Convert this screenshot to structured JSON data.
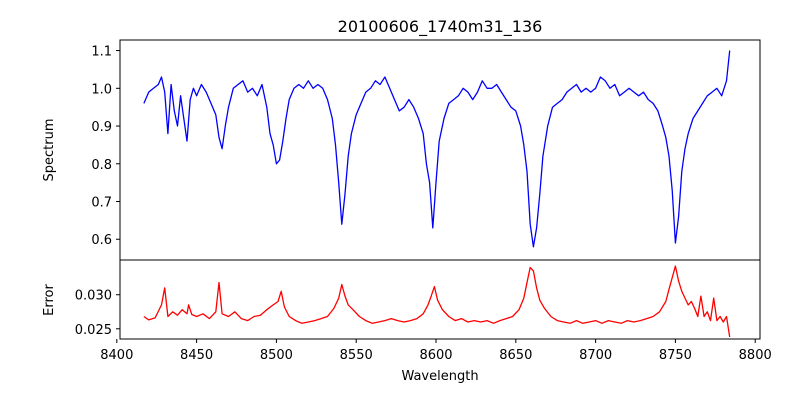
{
  "chart_data": [
    {
      "type": "line",
      "panel": "top",
      "title": "20100606_1740m31_136",
      "xlabel": "",
      "ylabel": "Spectrum",
      "xlim": [
        8402,
        8803
      ],
      "ylim": [
        0.545,
        1.128
      ],
      "xticks": [
        8400,
        8450,
        8500,
        8550,
        8600,
        8650,
        8700,
        8750,
        8800
      ],
      "yticks": [
        0.6,
        0.7,
        0.8,
        0.9,
        1.0,
        1.1
      ],
      "ytick_labels": [
        "0.6",
        "0.7",
        "0.8",
        "0.9",
        "1.0",
        "1.1"
      ],
      "series": [
        {
          "name": "spectrum",
          "color": "#0000ff",
          "x": [
            8417,
            8420,
            8423,
            8426,
            8428,
            8430,
            8432,
            8434,
            8436,
            8438,
            8440,
            8442,
            8444,
            8446,
            8448,
            8450,
            8453,
            8456,
            8459,
            8462,
            8464,
            8466,
            8468,
            8470,
            8473,
            8476,
            8479,
            8482,
            8485,
            8488,
            8491,
            8494,
            8496,
            8498,
            8500,
            8502,
            8504,
            8506,
            8508,
            8511,
            8514,
            8517,
            8520,
            8523,
            8526,
            8529,
            8532,
            8535,
            8537,
            8539,
            8541,
            8543,
            8545,
            8547,
            8550,
            8553,
            8556,
            8559,
            8562,
            8565,
            8568,
            8571,
            8574,
            8577,
            8580,
            8583,
            8586,
            8589,
            8592,
            8594,
            8596,
            8598,
            8600,
            8602,
            8605,
            8608,
            8611,
            8614,
            8617,
            8620,
            8623,
            8626,
            8629,
            8632,
            8635,
            8638,
            8641,
            8644,
            8647,
            8650,
            8653,
            8655,
            8657,
            8659,
            8661,
            8663,
            8665,
            8667,
            8670,
            8673,
            8676,
            8679,
            8682,
            8685,
            8688,
            8691,
            8694,
            8697,
            8700,
            8703,
            8706,
            8709,
            8712,
            8715,
            8718,
            8721,
            8724,
            8727,
            8730,
            8733,
            8736,
            8739,
            8742,
            8744,
            8746,
            8748,
            8750,
            8752,
            8754,
            8756,
            8758,
            8761,
            8764,
            8767,
            8770,
            8773,
            8776,
            8779,
            8782,
            8784
          ],
          "y": [
            0.96,
            0.99,
            1.0,
            1.01,
            1.03,
            0.99,
            0.88,
            1.01,
            0.94,
            0.9,
            0.98,
            0.92,
            0.86,
            0.97,
            1.0,
            0.98,
            1.01,
            0.99,
            0.96,
            0.93,
            0.87,
            0.84,
            0.9,
            0.95,
            1.0,
            1.01,
            1.02,
            0.99,
            1.0,
            0.98,
            1.01,
            0.95,
            0.88,
            0.85,
            0.8,
            0.81,
            0.86,
            0.92,
            0.97,
            1.0,
            1.01,
            1.0,
            1.02,
            1.0,
            1.01,
            1.0,
            0.97,
            0.92,
            0.85,
            0.75,
            0.64,
            0.72,
            0.82,
            0.88,
            0.93,
            0.96,
            0.99,
            1.0,
            1.02,
            1.01,
            1.03,
            1.0,
            0.97,
            0.94,
            0.95,
            0.97,
            0.95,
            0.92,
            0.88,
            0.8,
            0.75,
            0.63,
            0.75,
            0.86,
            0.92,
            0.96,
            0.97,
            0.98,
            1.0,
            0.99,
            0.97,
            0.99,
            1.02,
            1.0,
            1.0,
            1.01,
            0.99,
            0.97,
            0.95,
            0.94,
            0.9,
            0.85,
            0.78,
            0.64,
            0.58,
            0.63,
            0.72,
            0.82,
            0.9,
            0.95,
            0.96,
            0.97,
            0.99,
            1.0,
            1.01,
            0.99,
            1.0,
            0.99,
            1.0,
            1.03,
            1.02,
            1.0,
            1.01,
            0.98,
            0.99,
            1.0,
            0.99,
            0.98,
            0.99,
            0.97,
            0.96,
            0.94,
            0.9,
            0.87,
            0.82,
            0.73,
            0.59,
            0.66,
            0.78,
            0.84,
            0.88,
            0.92,
            0.94,
            0.96,
            0.98,
            0.99,
            1.0,
            0.98,
            1.02,
            1.1
          ]
        }
      ]
    },
    {
      "type": "line",
      "panel": "bottom",
      "title": "",
      "xlabel": "Wavelength",
      "ylabel": "Error",
      "xlim": [
        8402,
        8803
      ],
      "ylim": [
        0.0235,
        0.0351
      ],
      "xticks": [
        8400,
        8450,
        8500,
        8550,
        8600,
        8650,
        8700,
        8750,
        8800
      ],
      "xtick_labels": [
        "8400",
        "8450",
        "8500",
        "8550",
        "8600",
        "8650",
        "8700",
        "8750",
        "8800"
      ],
      "yticks": [
        0.025,
        0.03
      ],
      "ytick_labels": [
        "0.025",
        "0.030"
      ],
      "series": [
        {
          "name": "error",
          "color": "#ff0000",
          "x": [
            8417,
            8420,
            8424,
            8428,
            8430,
            8432,
            8435,
            8438,
            8441,
            8444,
            8445,
            8447,
            8450,
            8454,
            8458,
            8462,
            8464,
            8466,
            8470,
            8474,
            8478,
            8482,
            8486,
            8490,
            8494,
            8498,
            8501,
            8503,
            8505,
            8508,
            8512,
            8516,
            8520,
            8524,
            8528,
            8532,
            8536,
            8539,
            8541,
            8543,
            8545,
            8548,
            8552,
            8556,
            8560,
            8564,
            8568,
            8572,
            8576,
            8580,
            8584,
            8588,
            8592,
            8595,
            8597,
            8599,
            8601,
            8604,
            8608,
            8612,
            8616,
            8620,
            8624,
            8628,
            8632,
            8636,
            8640,
            8644,
            8648,
            8652,
            8655,
            8657,
            8659,
            8661,
            8663,
            8665,
            8668,
            8672,
            8676,
            8680,
            8684,
            8688,
            8692,
            8696,
            8700,
            8704,
            8708,
            8712,
            8716,
            8720,
            8724,
            8728,
            8732,
            8736,
            8740,
            8744,
            8746,
            8748,
            8750,
            8752,
            8754,
            8756,
            8758,
            8760,
            8762,
            8764,
            8766,
            8768,
            8770,
            8772,
            8774,
            8776,
            8778,
            8780,
            8782,
            8784
          ],
          "y": [
            0.0268,
            0.0263,
            0.0266,
            0.0285,
            0.031,
            0.0268,
            0.0275,
            0.027,
            0.0278,
            0.0272,
            0.0285,
            0.0271,
            0.0268,
            0.0272,
            0.0265,
            0.0275,
            0.0318,
            0.0272,
            0.0268,
            0.0275,
            0.0265,
            0.0262,
            0.0268,
            0.027,
            0.0278,
            0.0285,
            0.029,
            0.0305,
            0.0282,
            0.0268,
            0.0262,
            0.0258,
            0.026,
            0.0262,
            0.0265,
            0.0268,
            0.028,
            0.0295,
            0.0315,
            0.0298,
            0.0285,
            0.0278,
            0.0268,
            0.0262,
            0.0258,
            0.026,
            0.0262,
            0.0265,
            0.0262,
            0.026,
            0.0262,
            0.0265,
            0.0272,
            0.0285,
            0.0298,
            0.0312,
            0.0292,
            0.0278,
            0.0268,
            0.0262,
            0.0265,
            0.026,
            0.0262,
            0.026,
            0.0262,
            0.0258,
            0.0262,
            0.0265,
            0.0268,
            0.0278,
            0.0295,
            0.0318,
            0.034,
            0.0335,
            0.031,
            0.0292,
            0.028,
            0.0268,
            0.0262,
            0.026,
            0.0258,
            0.0262,
            0.0258,
            0.026,
            0.0262,
            0.0258,
            0.0262,
            0.026,
            0.0258,
            0.0262,
            0.026,
            0.0262,
            0.0265,
            0.0268,
            0.0275,
            0.029,
            0.0308,
            0.0325,
            0.0342,
            0.032,
            0.0305,
            0.0295,
            0.0285,
            0.029,
            0.028,
            0.0268,
            0.0298,
            0.0268,
            0.0275,
            0.0262,
            0.0295,
            0.0262,
            0.0268,
            0.026,
            0.0268,
            0.0238
          ]
        }
      ]
    }
  ]
}
